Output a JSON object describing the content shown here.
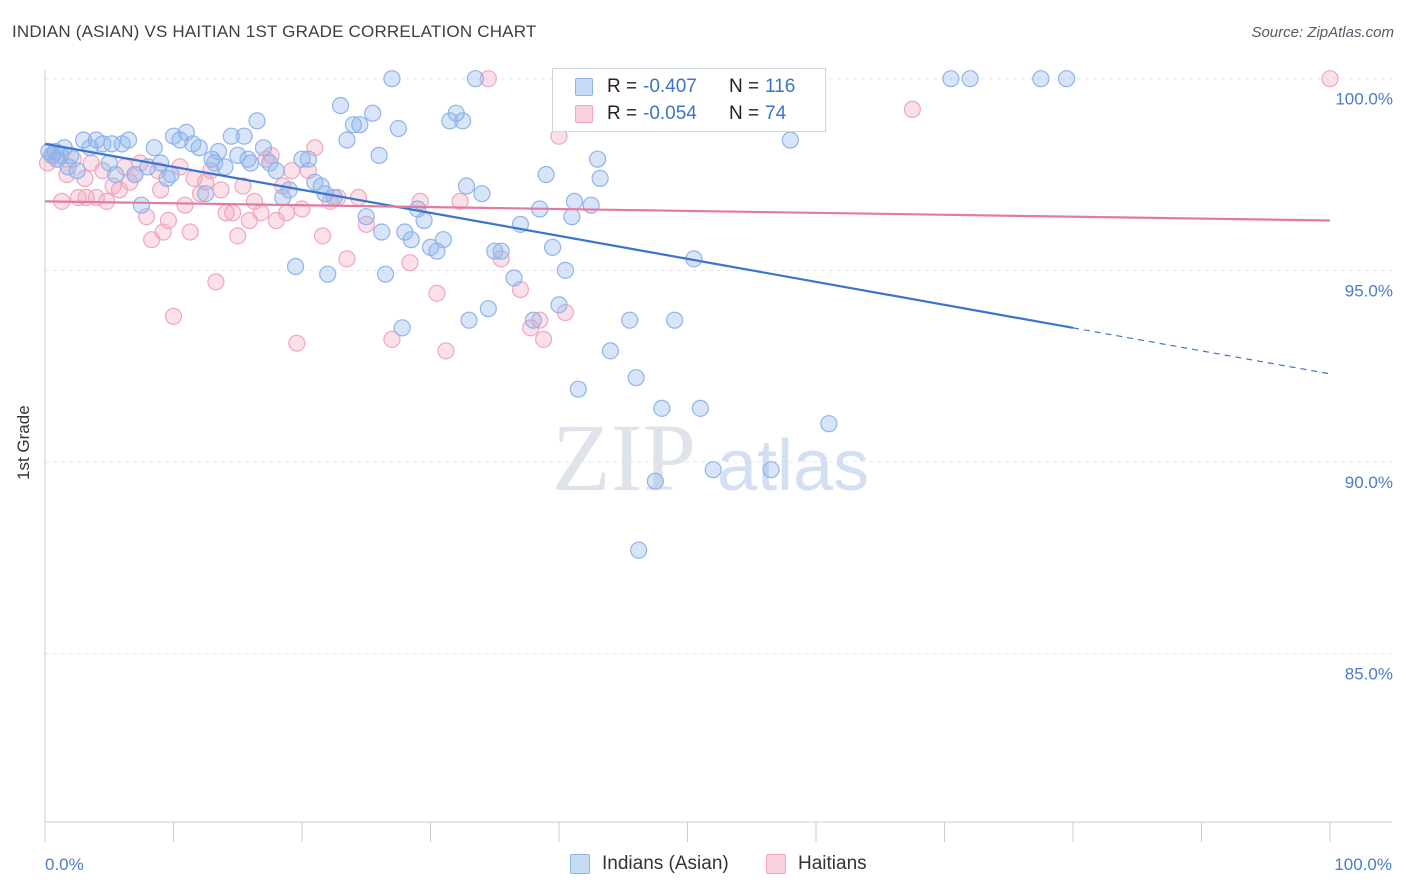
{
  "header": {
    "title": "INDIAN (ASIAN) VS HAITIAN 1ST GRADE CORRELATION CHART",
    "source": "Source: ZipAtlas.com"
  },
  "watermark": {
    "zip": "ZIP",
    "atlas": "atlas"
  },
  "legend_top": [
    {
      "r_key": "R =",
      "r_value": "-0.407",
      "n_key": "N =",
      "n_value": "116",
      "color": "#8fb4ea"
    },
    {
      "r_key": "R =",
      "r_value": "-0.054",
      "n_key": "N =",
      "n_value": "74",
      "color": "#f1a6c0"
    }
  ],
  "legend_bottom": [
    {
      "label": "Indians (Asian)",
      "color": "#8fb4ea"
    },
    {
      "label": "Haitians",
      "color": "#f1a6c0"
    }
  ],
  "chart_data": {
    "type": "scatter",
    "title": "INDIAN (ASIAN) VS HAITIAN 1ST GRADE CORRELATION CHART",
    "xlabel": "",
    "ylabel": "1st Grade",
    "xlim": [
      0,
      100
    ],
    "ylim": [
      80.5,
      101.0
    ],
    "x_tick_labels": [
      "0.0%",
      "100.0%"
    ],
    "y_ticks": [
      85,
      90,
      95,
      100
    ],
    "y_tick_labels": [
      "85.0%",
      "90.0%",
      "95.0%",
      "100.0%"
    ],
    "grid": true,
    "legend_position": "top-center",
    "series": [
      {
        "name": "Indians (Asian)",
        "color": "#8fb4ea",
        "trend_color": "#3b74d0",
        "trend": {
          "x0": 0,
          "y0": 98.3,
          "x1": 80,
          "y1": 93.5,
          "dashed_to_x": 100,
          "dashed_to_y": 92.3
        },
        "points": [
          [
            0.3,
            98.1
          ],
          [
            0.6,
            98.0
          ],
          [
            0.8,
            98.1
          ],
          [
            1.0,
            97.9
          ],
          [
            1.2,
            98.0
          ],
          [
            1.5,
            98.2
          ],
          [
            1.8,
            97.7
          ],
          [
            2.0,
            98.0
          ],
          [
            2.5,
            97.6
          ],
          [
            3.0,
            98.4
          ],
          [
            3.5,
            98.2
          ],
          [
            4.0,
            98.4
          ],
          [
            4.5,
            98.3
          ],
          [
            5.0,
            97.8
          ],
          [
            5.5,
            97.5
          ],
          [
            6.0,
            98.3
          ],
          [
            6.5,
            98.4
          ],
          [
            7.0,
            97.5
          ],
          [
            7.5,
            96.7
          ],
          [
            8.0,
            97.7
          ],
          [
            8.5,
            98.2
          ],
          [
            9.0,
            97.8
          ],
          [
            9.5,
            97.4
          ],
          [
            10.0,
            98.5
          ],
          [
            10.5,
            98.4
          ],
          [
            11.0,
            98.6
          ],
          [
            11.5,
            98.3
          ],
          [
            12.0,
            98.2
          ],
          [
            12.5,
            97.0
          ],
          [
            13.0,
            97.9
          ],
          [
            13.5,
            98.1
          ],
          [
            14.0,
            97.7
          ],
          [
            14.5,
            98.5
          ],
          [
            15.0,
            98.0
          ],
          [
            15.5,
            98.5
          ],
          [
            16.0,
            97.8
          ],
          [
            16.5,
            98.9
          ],
          [
            17.0,
            98.2
          ],
          [
            17.5,
            97.8
          ],
          [
            18.0,
            97.6
          ],
          [
            18.5,
            96.9
          ],
          [
            19.0,
            97.1
          ],
          [
            19.5,
            95.1
          ],
          [
            20.0,
            97.9
          ],
          [
            20.5,
            97.9
          ],
          [
            21.0,
            97.3
          ],
          [
            21.5,
            97.2
          ],
          [
            22.0,
            94.9
          ],
          [
            22.5,
            96.9
          ],
          [
            23.0,
            99.3
          ],
          [
            23.5,
            98.4
          ],
          [
            24.0,
            98.8
          ],
          [
            24.5,
            98.8
          ],
          [
            25.0,
            96.4
          ],
          [
            25.5,
            99.1
          ],
          [
            26.0,
            98.0
          ],
          [
            26.5,
            94.9
          ],
          [
            27.0,
            100.0
          ],
          [
            27.5,
            98.7
          ],
          [
            27.8,
            93.5
          ],
          [
            28.0,
            96.0
          ],
          [
            28.5,
            95.8
          ],
          [
            29.0,
            96.6
          ],
          [
            29.5,
            96.3
          ],
          [
            30.0,
            95.6
          ],
          [
            30.5,
            95.5
          ],
          [
            31.0,
            95.8
          ],
          [
            31.5,
            98.9
          ],
          [
            32.0,
            99.1
          ],
          [
            32.5,
            98.9
          ],
          [
            33.0,
            93.7
          ],
          [
            33.5,
            100.0
          ],
          [
            34.0,
            97.0
          ],
          [
            34.5,
            94.0
          ],
          [
            35.0,
            95.5
          ],
          [
            35.5,
            95.5
          ],
          [
            36.5,
            94.8
          ],
          [
            37.0,
            96.2
          ],
          [
            38.0,
            93.7
          ],
          [
            38.5,
            96.6
          ],
          [
            39.0,
            97.5
          ],
          [
            39.5,
            95.6
          ],
          [
            40.0,
            94.1
          ],
          [
            40.5,
            95.0
          ],
          [
            41.0,
            96.4
          ],
          [
            41.2,
            96.8
          ],
          [
            41.5,
            91.9
          ],
          [
            42.5,
            96.7
          ],
          [
            43.0,
            97.9
          ],
          [
            43.2,
            97.4
          ],
          [
            44.0,
            92.9
          ],
          [
            45.5,
            93.7
          ],
          [
            46.0,
            92.2
          ],
          [
            46.2,
            87.7
          ],
          [
            47.5,
            89.5
          ],
          [
            48.0,
            91.4
          ],
          [
            49.0,
            93.7
          ],
          [
            50.0,
            100.0
          ],
          [
            50.5,
            95.3
          ],
          [
            51.0,
            91.4
          ],
          [
            52.0,
            89.8
          ],
          [
            53.0,
            100.0
          ],
          [
            56.5,
            89.8
          ],
          [
            58.0,
            98.4
          ],
          [
            61.0,
            91.0
          ],
          [
            70.5,
            100.0
          ],
          [
            72.0,
            100.0
          ],
          [
            77.5,
            100.0
          ],
          [
            79.5,
            100.0
          ],
          [
            5.2,
            98.3
          ],
          [
            9.8,
            97.5
          ],
          [
            13.2,
            97.8
          ],
          [
            15.8,
            97.9
          ],
          [
            21.8,
            97.0
          ],
          [
            26.2,
            96.0
          ],
          [
            32.8,
            97.2
          ]
        ]
      },
      {
        "name": "Haitians",
        "color": "#f1a6c0",
        "trend_color": "#e57aa0",
        "trend": {
          "x0": 0,
          "y0": 96.8,
          "x1": 100,
          "y1": 96.3
        },
        "points": [
          [
            0.2,
            97.8
          ],
          [
            0.5,
            98.0
          ],
          [
            0.9,
            97.9
          ],
          [
            1.3,
            96.8
          ],
          [
            1.7,
            97.5
          ],
          [
            2.2,
            97.9
          ],
          [
            2.6,
            96.9
          ],
          [
            3.1,
            97.4
          ],
          [
            3.6,
            97.8
          ],
          [
            4.0,
            96.9
          ],
          [
            4.5,
            97.6
          ],
          [
            4.8,
            96.8
          ],
          [
            5.3,
            97.2
          ],
          [
            5.8,
            97.1
          ],
          [
            6.2,
            97.7
          ],
          [
            6.6,
            97.3
          ],
          [
            7.0,
            97.5
          ],
          [
            7.4,
            97.8
          ],
          [
            7.9,
            96.4
          ],
          [
            8.3,
            95.8
          ],
          [
            8.8,
            97.6
          ],
          [
            9.2,
            96.0
          ],
          [
            9.6,
            96.3
          ],
          [
            10.0,
            93.8
          ],
          [
            10.5,
            97.7
          ],
          [
            10.9,
            96.7
          ],
          [
            11.3,
            96.0
          ],
          [
            11.6,
            97.4
          ],
          [
            12.1,
            97.0
          ],
          [
            12.5,
            97.3
          ],
          [
            12.9,
            97.6
          ],
          [
            13.3,
            94.7
          ],
          [
            13.7,
            97.1
          ],
          [
            14.1,
            96.5
          ],
          [
            14.6,
            96.5
          ],
          [
            15.0,
            95.9
          ],
          [
            15.4,
            97.2
          ],
          [
            15.9,
            96.3
          ],
          [
            16.3,
            96.8
          ],
          [
            16.8,
            96.5
          ],
          [
            17.2,
            97.9
          ],
          [
            17.6,
            98.0
          ],
          [
            18.0,
            96.3
          ],
          [
            18.5,
            97.2
          ],
          [
            18.8,
            96.5
          ],
          [
            19.2,
            97.6
          ],
          [
            19.6,
            93.1
          ],
          [
            20.0,
            96.6
          ],
          [
            20.5,
            97.6
          ],
          [
            21.0,
            98.2
          ],
          [
            21.6,
            95.9
          ],
          [
            22.2,
            96.8
          ],
          [
            22.8,
            96.9
          ],
          [
            23.5,
            95.3
          ],
          [
            24.4,
            96.9
          ],
          [
            25.0,
            96.2
          ],
          [
            27.0,
            93.2
          ],
          [
            28.4,
            95.2
          ],
          [
            29.2,
            96.8
          ],
          [
            30.5,
            94.4
          ],
          [
            31.2,
            92.9
          ],
          [
            32.3,
            96.8
          ],
          [
            34.5,
            100.0
          ],
          [
            35.5,
            95.3
          ],
          [
            37.0,
            94.5
          ],
          [
            37.8,
            93.5
          ],
          [
            38.5,
            93.7
          ],
          [
            38.8,
            93.2
          ],
          [
            40.0,
            98.5
          ],
          [
            40.5,
            93.9
          ],
          [
            67.5,
            99.2
          ],
          [
            100.0,
            100.0
          ],
          [
            3.2,
            96.9
          ],
          [
            9.0,
            97.1
          ]
        ]
      }
    ]
  }
}
